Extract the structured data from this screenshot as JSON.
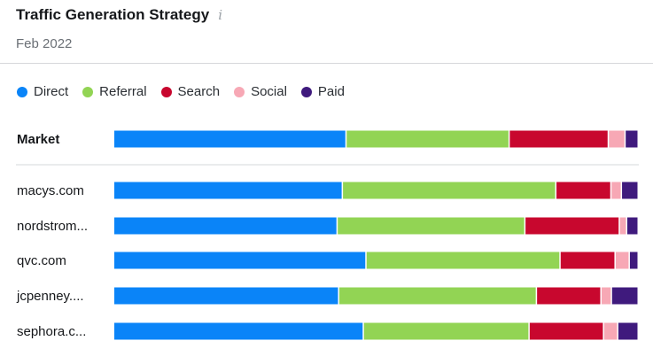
{
  "header": {
    "title": "Traffic Generation Strategy",
    "info_icon": "i",
    "subtitle": "Feb 2022"
  },
  "colors": {
    "Direct": "#0a84f8",
    "Referral": "#92d454",
    "Search": "#c8072e",
    "Social": "#f7a8b5",
    "Paid": "#3f1a7d"
  },
  "chart_data": {
    "type": "bar",
    "orientation": "horizontal",
    "stacked": true,
    "normalized_percent": true,
    "title": "Traffic Generation Strategy",
    "subtitle": "Feb 2022",
    "legend": [
      "Direct",
      "Referral",
      "Search",
      "Social",
      "Paid"
    ],
    "legend_position": "top-left",
    "categories": [
      "Market",
      "macys.com",
      "nordstrom...",
      "qvc.com",
      "jcpenney....",
      "sephora.c..."
    ],
    "series": [
      {
        "name": "Direct",
        "values": [
          44.3,
          43.6,
          42.6,
          48.1,
          42.9,
          47.6
        ]
      },
      {
        "name": "Referral",
        "values": [
          31.1,
          40.7,
          35.8,
          37.0,
          37.7,
          31.6
        ]
      },
      {
        "name": "Search",
        "values": [
          18.9,
          10.5,
          18.0,
          10.5,
          12.3,
          14.2
        ]
      },
      {
        "name": "Social",
        "values": [
          3.2,
          2.0,
          1.4,
          2.7,
          2.0,
          2.7
        ]
      },
      {
        "name": "Paid",
        "values": [
          2.5,
          3.2,
          2.2,
          1.7,
          5.1,
          3.9
        ]
      }
    ],
    "xlim": [
      0,
      100
    ],
    "grid": false
  }
}
